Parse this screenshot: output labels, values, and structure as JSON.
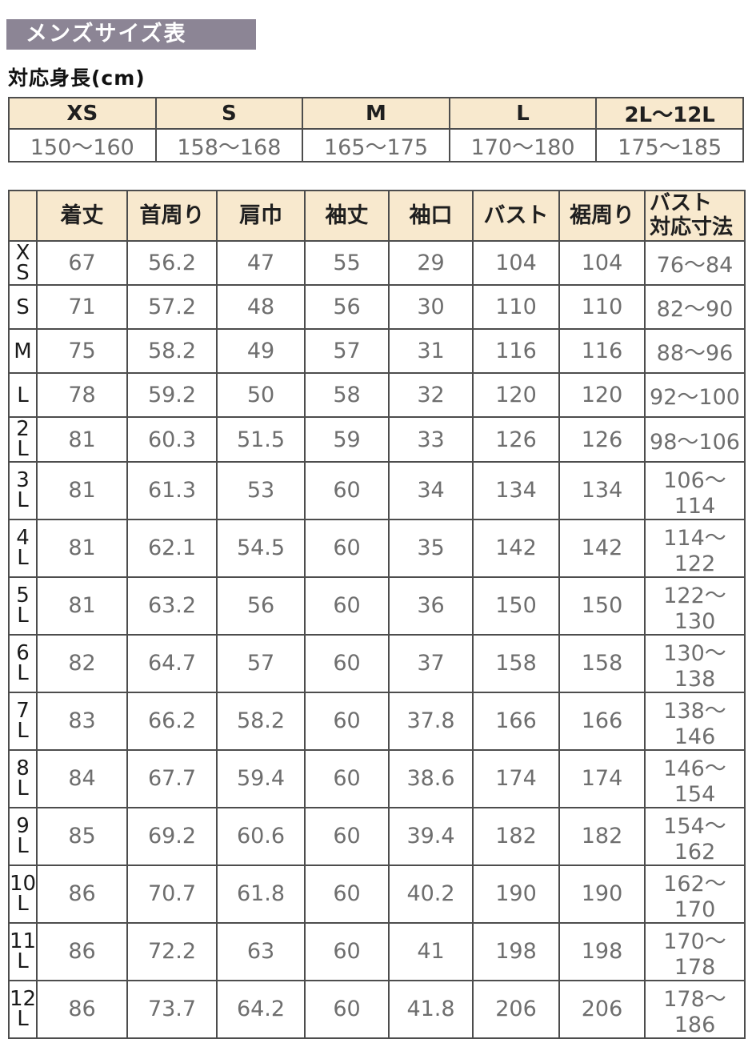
{
  "page": {
    "title": "メンズサイズ表",
    "subtitle": "対応身長(cm)"
  },
  "colors": {
    "title_bar_bg": "#8c8595",
    "header_bg": "#f8e9ce",
    "border": "#4d4d4d",
    "value_text": "#6e6e6e",
    "label_text": "#1a1a1a"
  },
  "height_table": {
    "columns": [
      "XS",
      "S",
      "M",
      "L",
      "2L〜12L"
    ],
    "values": [
      "150〜160",
      "158〜168",
      "165〜175",
      "170〜180",
      "175〜185"
    ]
  },
  "size_table": {
    "columns": [
      "着丈",
      "首周り",
      "肩巾",
      "袖丈",
      "袖口",
      "バスト",
      "裾周り",
      "バスト\n対応寸法"
    ],
    "rows": [
      {
        "label": "XS",
        "label_lines": [
          "X",
          "S"
        ],
        "values": [
          "67",
          "56.2",
          "47",
          "55",
          "29",
          "104",
          "104",
          "76〜84"
        ]
      },
      {
        "label": "S",
        "label_lines": [
          "S"
        ],
        "values": [
          "71",
          "57.2",
          "48",
          "56",
          "30",
          "110",
          "110",
          "82〜90"
        ]
      },
      {
        "label": "M",
        "label_lines": [
          "M"
        ],
        "values": [
          "75",
          "58.2",
          "49",
          "57",
          "31",
          "116",
          "116",
          "88〜96"
        ]
      },
      {
        "label": "L",
        "label_lines": [
          "L"
        ],
        "values": [
          "78",
          "59.2",
          "50",
          "58",
          "32",
          "120",
          "120",
          "92〜100"
        ]
      },
      {
        "label": "2L",
        "label_lines": [
          "2",
          "L"
        ],
        "values": [
          "81",
          "60.3",
          "51.5",
          "59",
          "33",
          "126",
          "126",
          "98〜106"
        ]
      },
      {
        "label": "3L",
        "label_lines": [
          "3",
          "L"
        ],
        "values": [
          "81",
          "61.3",
          "53",
          "60",
          "34",
          "134",
          "134",
          "106〜114"
        ]
      },
      {
        "label": "4L",
        "label_lines": [
          "4",
          "L"
        ],
        "values": [
          "81",
          "62.1",
          "54.5",
          "60",
          "35",
          "142",
          "142",
          "114〜122"
        ]
      },
      {
        "label": "5L",
        "label_lines": [
          "5",
          "L"
        ],
        "values": [
          "81",
          "63.2",
          "56",
          "60",
          "36",
          "150",
          "150",
          "122〜130"
        ]
      },
      {
        "label": "6L",
        "label_lines": [
          "6",
          "L"
        ],
        "values": [
          "82",
          "64.7",
          "57",
          "60",
          "37",
          "158",
          "158",
          "130〜138"
        ]
      },
      {
        "label": "7L",
        "label_lines": [
          "7",
          "L"
        ],
        "values": [
          "83",
          "66.2",
          "58.2",
          "60",
          "37.8",
          "166",
          "166",
          "138〜146"
        ]
      },
      {
        "label": "8L",
        "label_lines": [
          "8",
          "L"
        ],
        "values": [
          "84",
          "67.7",
          "59.4",
          "60",
          "38.6",
          "174",
          "174",
          "146〜154"
        ]
      },
      {
        "label": "9L",
        "label_lines": [
          "9",
          "L"
        ],
        "values": [
          "85",
          "69.2",
          "60.6",
          "60",
          "39.4",
          "182",
          "182",
          "154〜162"
        ]
      },
      {
        "label": "10L",
        "label_lines": [
          "10",
          "L"
        ],
        "values": [
          "86",
          "70.7",
          "61.8",
          "60",
          "40.2",
          "190",
          "190",
          "162〜170"
        ]
      },
      {
        "label": "11L",
        "label_lines": [
          "11",
          "L"
        ],
        "values": [
          "86",
          "72.2",
          "63",
          "60",
          "41",
          "198",
          "198",
          "170〜178"
        ]
      },
      {
        "label": "12L",
        "label_lines": [
          "12",
          "L"
        ],
        "values": [
          "86",
          "73.7",
          "64.2",
          "60",
          "41.8",
          "206",
          "206",
          "178〜186"
        ]
      }
    ]
  }
}
